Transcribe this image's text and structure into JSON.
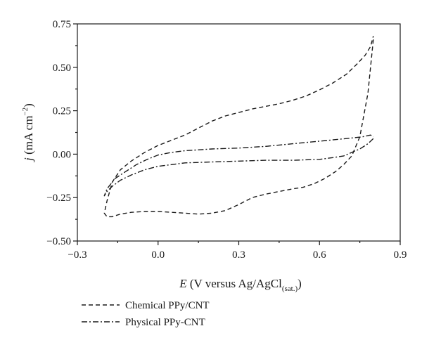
{
  "chart_data": {
    "type": "line",
    "xlabel": {
      "italic": "E",
      "main": " (V versus Ag/AgCl",
      "sub": "(sat.)",
      "tail": ")"
    },
    "ylabel": {
      "italic": "j",
      "main": " (mA cm",
      "sup": "−2",
      "tail": ")"
    },
    "xlim": [
      -0.3,
      0.9
    ],
    "ylim": [
      -0.5,
      0.75
    ],
    "x_ticks": [
      -0.3,
      0.0,
      0.3,
      0.6,
      0.9
    ],
    "x_tick_labels": [
      "−0.3",
      "0.0",
      "0.3",
      "0.6",
      "0.9"
    ],
    "y_ticks": [
      -0.5,
      -0.25,
      0.0,
      0.25,
      0.5,
      0.75
    ],
    "y_tick_labels": [
      "−0.50",
      "−0.25",
      "0.00",
      "0.25",
      "0.50",
      "0.75"
    ],
    "legend_position": "below",
    "series": [
      {
        "name": "Chemical PPy/CNT",
        "dash": "dashed",
        "x": [
          0.8,
          0.78,
          0.75,
          0.72,
          0.69,
          0.66,
          0.62,
          0.58,
          0.54,
          0.5,
          0.45,
          0.4,
          0.35,
          0.3,
          0.25,
          0.2,
          0.15,
          0.1,
          0.05,
          0.0,
          -0.05,
          -0.1,
          -0.14,
          -0.17,
          -0.19,
          -0.2,
          -0.19,
          -0.17,
          -0.14,
          -0.1,
          -0.05,
          0.0,
          0.05,
          0.1,
          0.15,
          0.2,
          0.25,
          0.3,
          0.35,
          0.4,
          0.45,
          0.5,
          0.55,
          0.6,
          0.65,
          0.7,
          0.74,
          0.77,
          0.79,
          0.8
        ],
        "y": [
          0.66,
          0.35,
          0.1,
          -0.01,
          -0.06,
          -0.1,
          -0.14,
          -0.17,
          -0.19,
          -0.2,
          -0.215,
          -0.23,
          -0.25,
          -0.29,
          -0.325,
          -0.34,
          -0.345,
          -0.34,
          -0.335,
          -0.33,
          -0.33,
          -0.335,
          -0.345,
          -0.36,
          -0.36,
          -0.34,
          -0.27,
          -0.16,
          -0.09,
          -0.04,
          0.01,
          0.05,
          0.08,
          0.11,
          0.15,
          0.19,
          0.22,
          0.24,
          0.26,
          0.275,
          0.29,
          0.31,
          0.335,
          0.37,
          0.41,
          0.46,
          0.52,
          0.57,
          0.62,
          0.68
        ]
      },
      {
        "name": "Physical PPy-CNT",
        "dash": "dash-dot",
        "x": [
          0.8,
          0.78,
          0.75,
          0.72,
          0.69,
          0.65,
          0.6,
          0.5,
          0.4,
          0.3,
          0.2,
          0.1,
          0.0,
          -0.05,
          -0.1,
          -0.14,
          -0.17,
          -0.19,
          -0.2,
          -0.19,
          -0.16,
          -0.12,
          -0.08,
          -0.04,
          0.0,
          0.05,
          0.1,
          0.2,
          0.3,
          0.4,
          0.5,
          0.6,
          0.7,
          0.76,
          0.79,
          0.8
        ],
        "y": [
          0.09,
          0.06,
          0.03,
          0.01,
          -0.01,
          -0.02,
          -0.03,
          -0.035,
          -0.035,
          -0.04,
          -0.045,
          -0.05,
          -0.07,
          -0.09,
          -0.12,
          -0.15,
          -0.185,
          -0.215,
          -0.24,
          -0.2,
          -0.14,
          -0.1,
          -0.06,
          -0.03,
          -0.005,
          0.01,
          0.02,
          0.03,
          0.035,
          0.045,
          0.06,
          0.075,
          0.09,
          0.1,
          0.11,
          0.1
        ]
      }
    ]
  }
}
